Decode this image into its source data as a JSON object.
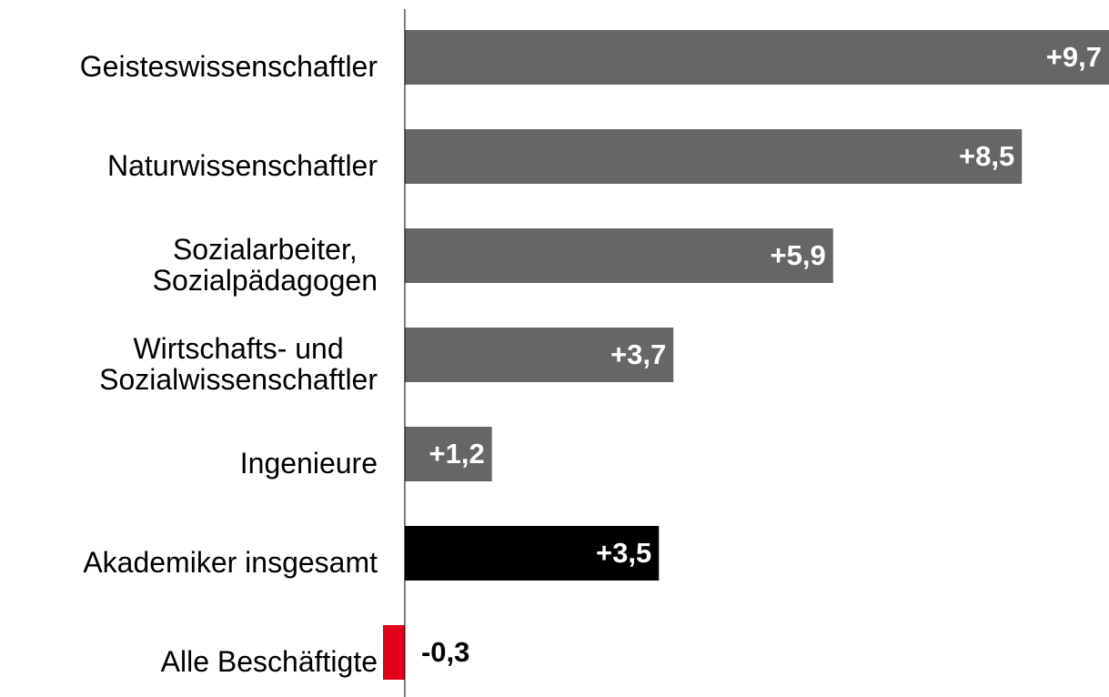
{
  "chart_data": {
    "type": "bar",
    "orientation": "horizontal",
    "categories": [
      "Geisteswissenschaftler",
      "Naturwissenschaftler",
      "Sozialarbeiter,\nSozialpädagogen",
      "Wirtschafts- und\nSozialwissenschaftler",
      "Ingenieure",
      "Akademiker insgesamt",
      "Alle Beschäftigte"
    ],
    "values": [
      9.7,
      8.5,
      5.9,
      3.7,
      1.2,
      3.5,
      -0.3
    ],
    "value_labels": [
      "+9,7",
      "+8,5",
      "+5,9",
      "+3,7",
      "+1,2",
      "+3,5",
      "-0,3"
    ],
    "colors": [
      "#666666",
      "#666666",
      "#666666",
      "#666666",
      "#666666",
      "#000000",
      "#e2001a"
    ],
    "xlim": [
      -0.3,
      9.7
    ]
  }
}
